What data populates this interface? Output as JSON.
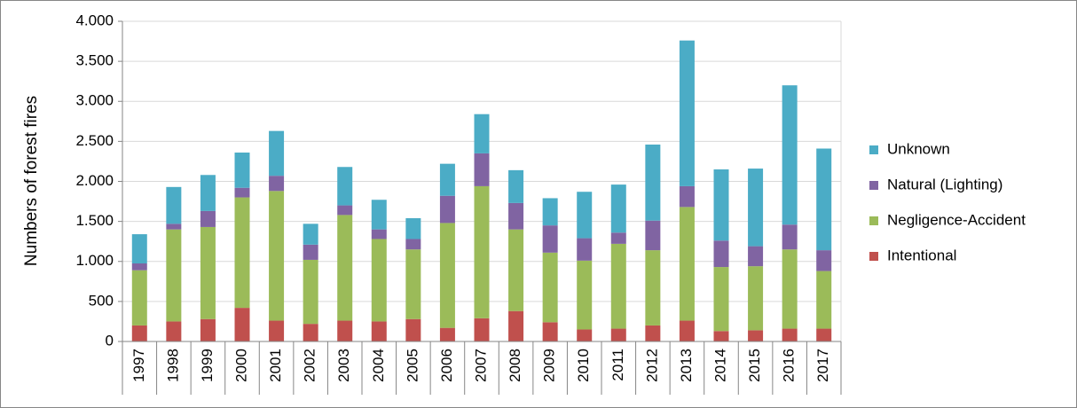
{
  "chart_data": {
    "type": "stacked_bar",
    "y_label": "Numbers of  forest  fires",
    "categories": [
      "1997",
      "1998",
      "1999",
      "2000",
      "2001",
      "2002",
      "2003",
      "2004",
      "2005",
      "2006",
      "2007",
      "2008",
      "2009",
      "2010",
      "2011",
      "2012",
      "2013",
      "2014",
      "2015",
      "2016",
      "2017"
    ],
    "series": [
      {
        "name": "Intentional",
        "color": "#c0504d",
        "values": [
          200,
          250,
          280,
          420,
          260,
          220,
          260,
          250,
          280,
          170,
          290,
          380,
          240,
          150,
          160,
          200,
          260,
          130,
          140,
          160,
          160
        ]
      },
      {
        "name": "Negligence-Accident",
        "color": "#9bbb59",
        "values": [
          690,
          1150,
          1150,
          1380,
          1620,
          800,
          1320,
          1030,
          870,
          1310,
          1650,
          1020,
          870,
          860,
          1060,
          940,
          1420,
          800,
          800,
          990,
          720
        ]
      },
      {
        "name": "Natural (Lighting)",
        "color": "#8064a2",
        "values": [
          85,
          70,
          200,
          120,
          190,
          190,
          120,
          120,
          130,
          340,
          410,
          330,
          340,
          280,
          140,
          370,
          260,
          330,
          250,
          310,
          260
        ]
      },
      {
        "name": "Unknown",
        "color": "#4bacc6",
        "values": [
          365,
          460,
          450,
          440,
          560,
          260,
          480,
          370,
          260,
          400,
          490,
          410,
          340,
          580,
          600,
          950,
          1820,
          890,
          970,
          1740,
          1270
        ]
      }
    ],
    "ylim": [
      0,
      4000
    ],
    "yticks": [
      0,
      500,
      {
        "value": 1000,
        "label": "1.000"
      },
      {
        "value": 1500,
        "label": "1.500"
      },
      {
        "value": 2000,
        "label": "2.000"
      },
      {
        "value": 2500,
        "label": "2.500"
      },
      {
        "value": 3000,
        "label": "3.000"
      },
      {
        "value": 3500,
        "label": "3.500"
      },
      {
        "value": 4000,
        "label": "4.000"
      }
    ],
    "grid": true,
    "legend": "right"
  }
}
